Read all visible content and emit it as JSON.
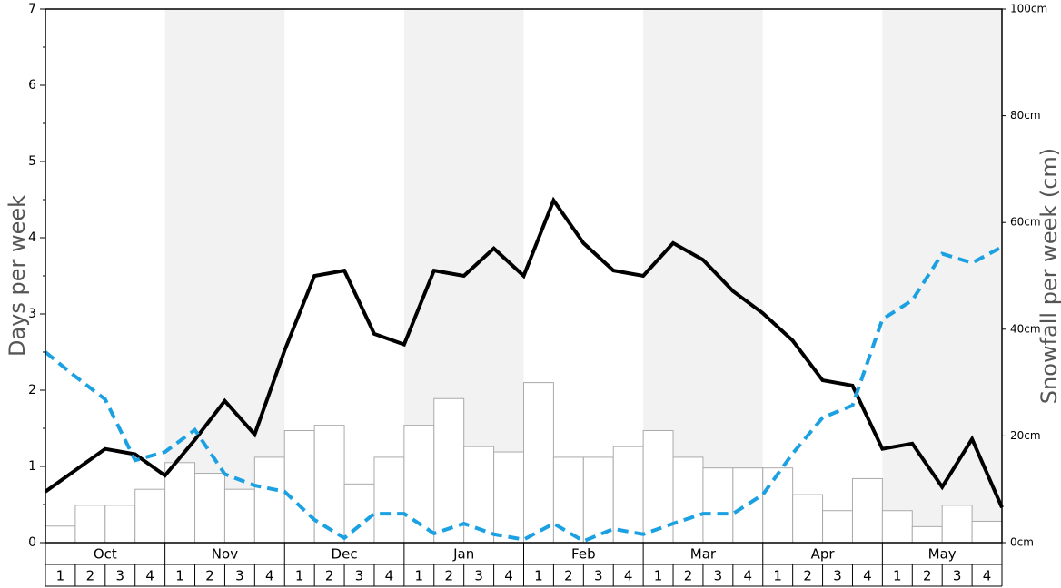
{
  "chart_data": {
    "type": "combo",
    "y_label": "Days per week",
    "y2_label": "Snowfall per week (cm)",
    "months": [
      "Oct",
      "Nov",
      "Dec",
      "Jan",
      "Feb",
      "Mar",
      "Apr",
      "May"
    ],
    "weeks": [
      1,
      2,
      3,
      4
    ],
    "shaded_months": [
      "Nov",
      "Jan",
      "Mar",
      "May"
    ],
    "ylim": [
      0,
      7
    ],
    "yticks": [
      0,
      1,
      2,
      3,
      4,
      5,
      6,
      7
    ],
    "y2lim": [
      0,
      100
    ],
    "y2ticks": [
      {
        "value": 0,
        "label": "0cm"
      },
      {
        "value": 20,
        "label": "20cm"
      },
      {
        "value": 40,
        "label": "40cm"
      },
      {
        "value": 60,
        "label": "60cm"
      },
      {
        "value": 80,
        "label": "80cm"
      },
      {
        "value": 100,
        "label": "100cm"
      }
    ],
    "bars": {
      "axis": "y2",
      "color": "#ffffff",
      "values": [
        3.1,
        7,
        7,
        10,
        15,
        13,
        10,
        16,
        21,
        22,
        11,
        16,
        22,
        27,
        18,
        17,
        30,
        16,
        16,
        18,
        21,
        16,
        14,
        14,
        14,
        9,
        6,
        12,
        6,
        3,
        7,
        4
      ]
    },
    "series": [
      {
        "color": "#000000",
        "values": [
          0.67,
          0.95,
          1.23,
          1.16,
          0.88,
          1.35,
          1.86,
          1.42,
          2.52,
          3.5,
          3.57,
          2.74,
          2.6,
          3.57,
          3.5,
          3.86,
          3.5,
          4.49,
          3.93,
          3.57,
          3.5,
          3.93,
          3.71,
          3.3,
          3.01,
          2.65,
          2.13,
          2.06,
          1.23,
          1.3,
          0.73,
          1.36,
          0.46
        ]
      },
      {
        "color": "#1ba1e2",
        "dashed": true,
        "values": [
          2.5,
          2.18,
          1.88,
          1.08,
          1.19,
          1.48,
          0.9,
          0.75,
          0.67,
          0.3,
          0.06,
          0.38,
          0.38,
          0.12,
          0.25,
          0.11,
          0.04,
          0.25,
          0.02,
          0.18,
          0.11,
          0.25,
          0.38,
          0.38,
          0.63,
          1.17,
          1.64,
          1.8,
          2.93,
          3.18,
          3.79,
          3.67,
          3.88
        ]
      }
    ]
  }
}
